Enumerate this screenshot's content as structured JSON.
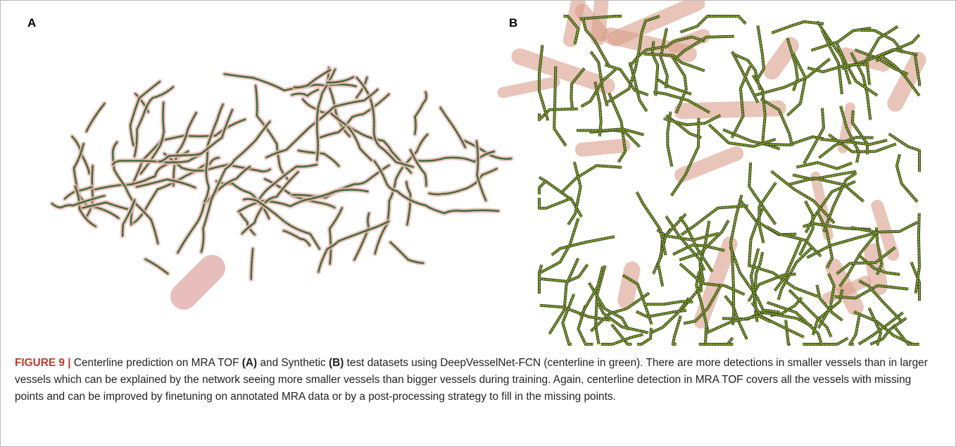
{
  "panels": [
    {
      "label": "A"
    },
    {
      "label": "B"
    }
  ],
  "caption": {
    "label": "FIGURE 9 |",
    "segments": [
      " Centerline prediction on MRA TOF ",
      "(A)",
      " and Synthetic ",
      "(B)",
      " test datasets using DeepVesselNet-FCN (centerline in green). There are more detections in smaller vessels than in larger vessels which can be explained by the network seeing more smaller vessels than bigger vessels during training. Again, centerline detection in MRA TOF covers all the vessels with missing points and can be improved by finetuning on annotated MRA data or by a post-processing strategy to fill in the missing points."
    ]
  }
}
